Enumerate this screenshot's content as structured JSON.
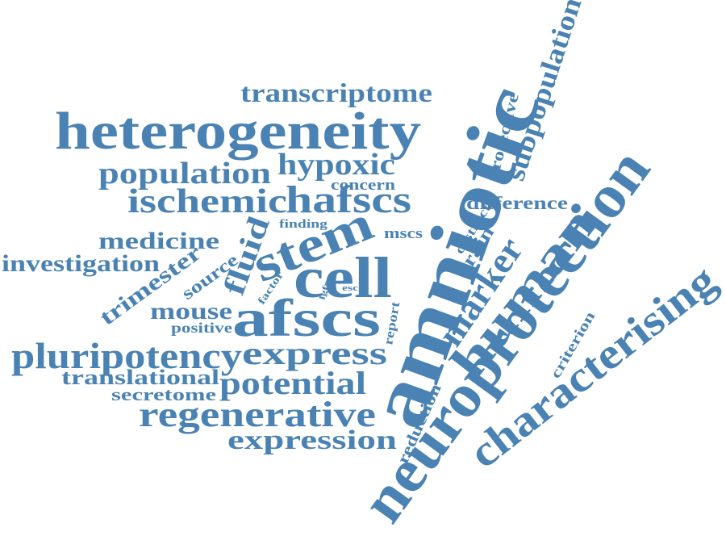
{
  "cloud": {
    "color": "#4a82b4",
    "words": {
      "transcriptome": "transcriptome",
      "heterogeneity": "heterogeneity",
      "protective": "protective",
      "subpopulation": "subpopulation",
      "population": "population",
      "hypoxic": "hypoxic",
      "concern": "concern",
      "ischemic": "ischemic",
      "hafscs": "hafscs",
      "difference": "difference",
      "finding": "finding",
      "amniotic": "amniotic",
      "neuroprotection": "neuroprotection",
      "medicine": "medicine",
      "fluid": "fluid",
      "stem": "stem",
      "mscs": "mscs",
      "distinct": "distinct",
      "investigation": "investigation",
      "source": "source",
      "cell": "cell",
      "brain": "brain",
      "human": "human",
      "trimester": "trimester",
      "factor": "factor",
      "lgfp": "lgfp",
      "esc": "esc",
      "marker": "marker",
      "characterising": "characterising",
      "mouse": "mouse",
      "afscs": "afscs",
      "positive": "positive",
      "report": "report",
      "criterion": "criterion",
      "pluripotency": "pluripotency",
      "express": "express",
      "translational": "translational",
      "potential": "potential",
      "secretome": "secretome",
      "regenerative": "regenerative",
      "reduction": "reduction",
      "expression": "expression"
    }
  }
}
